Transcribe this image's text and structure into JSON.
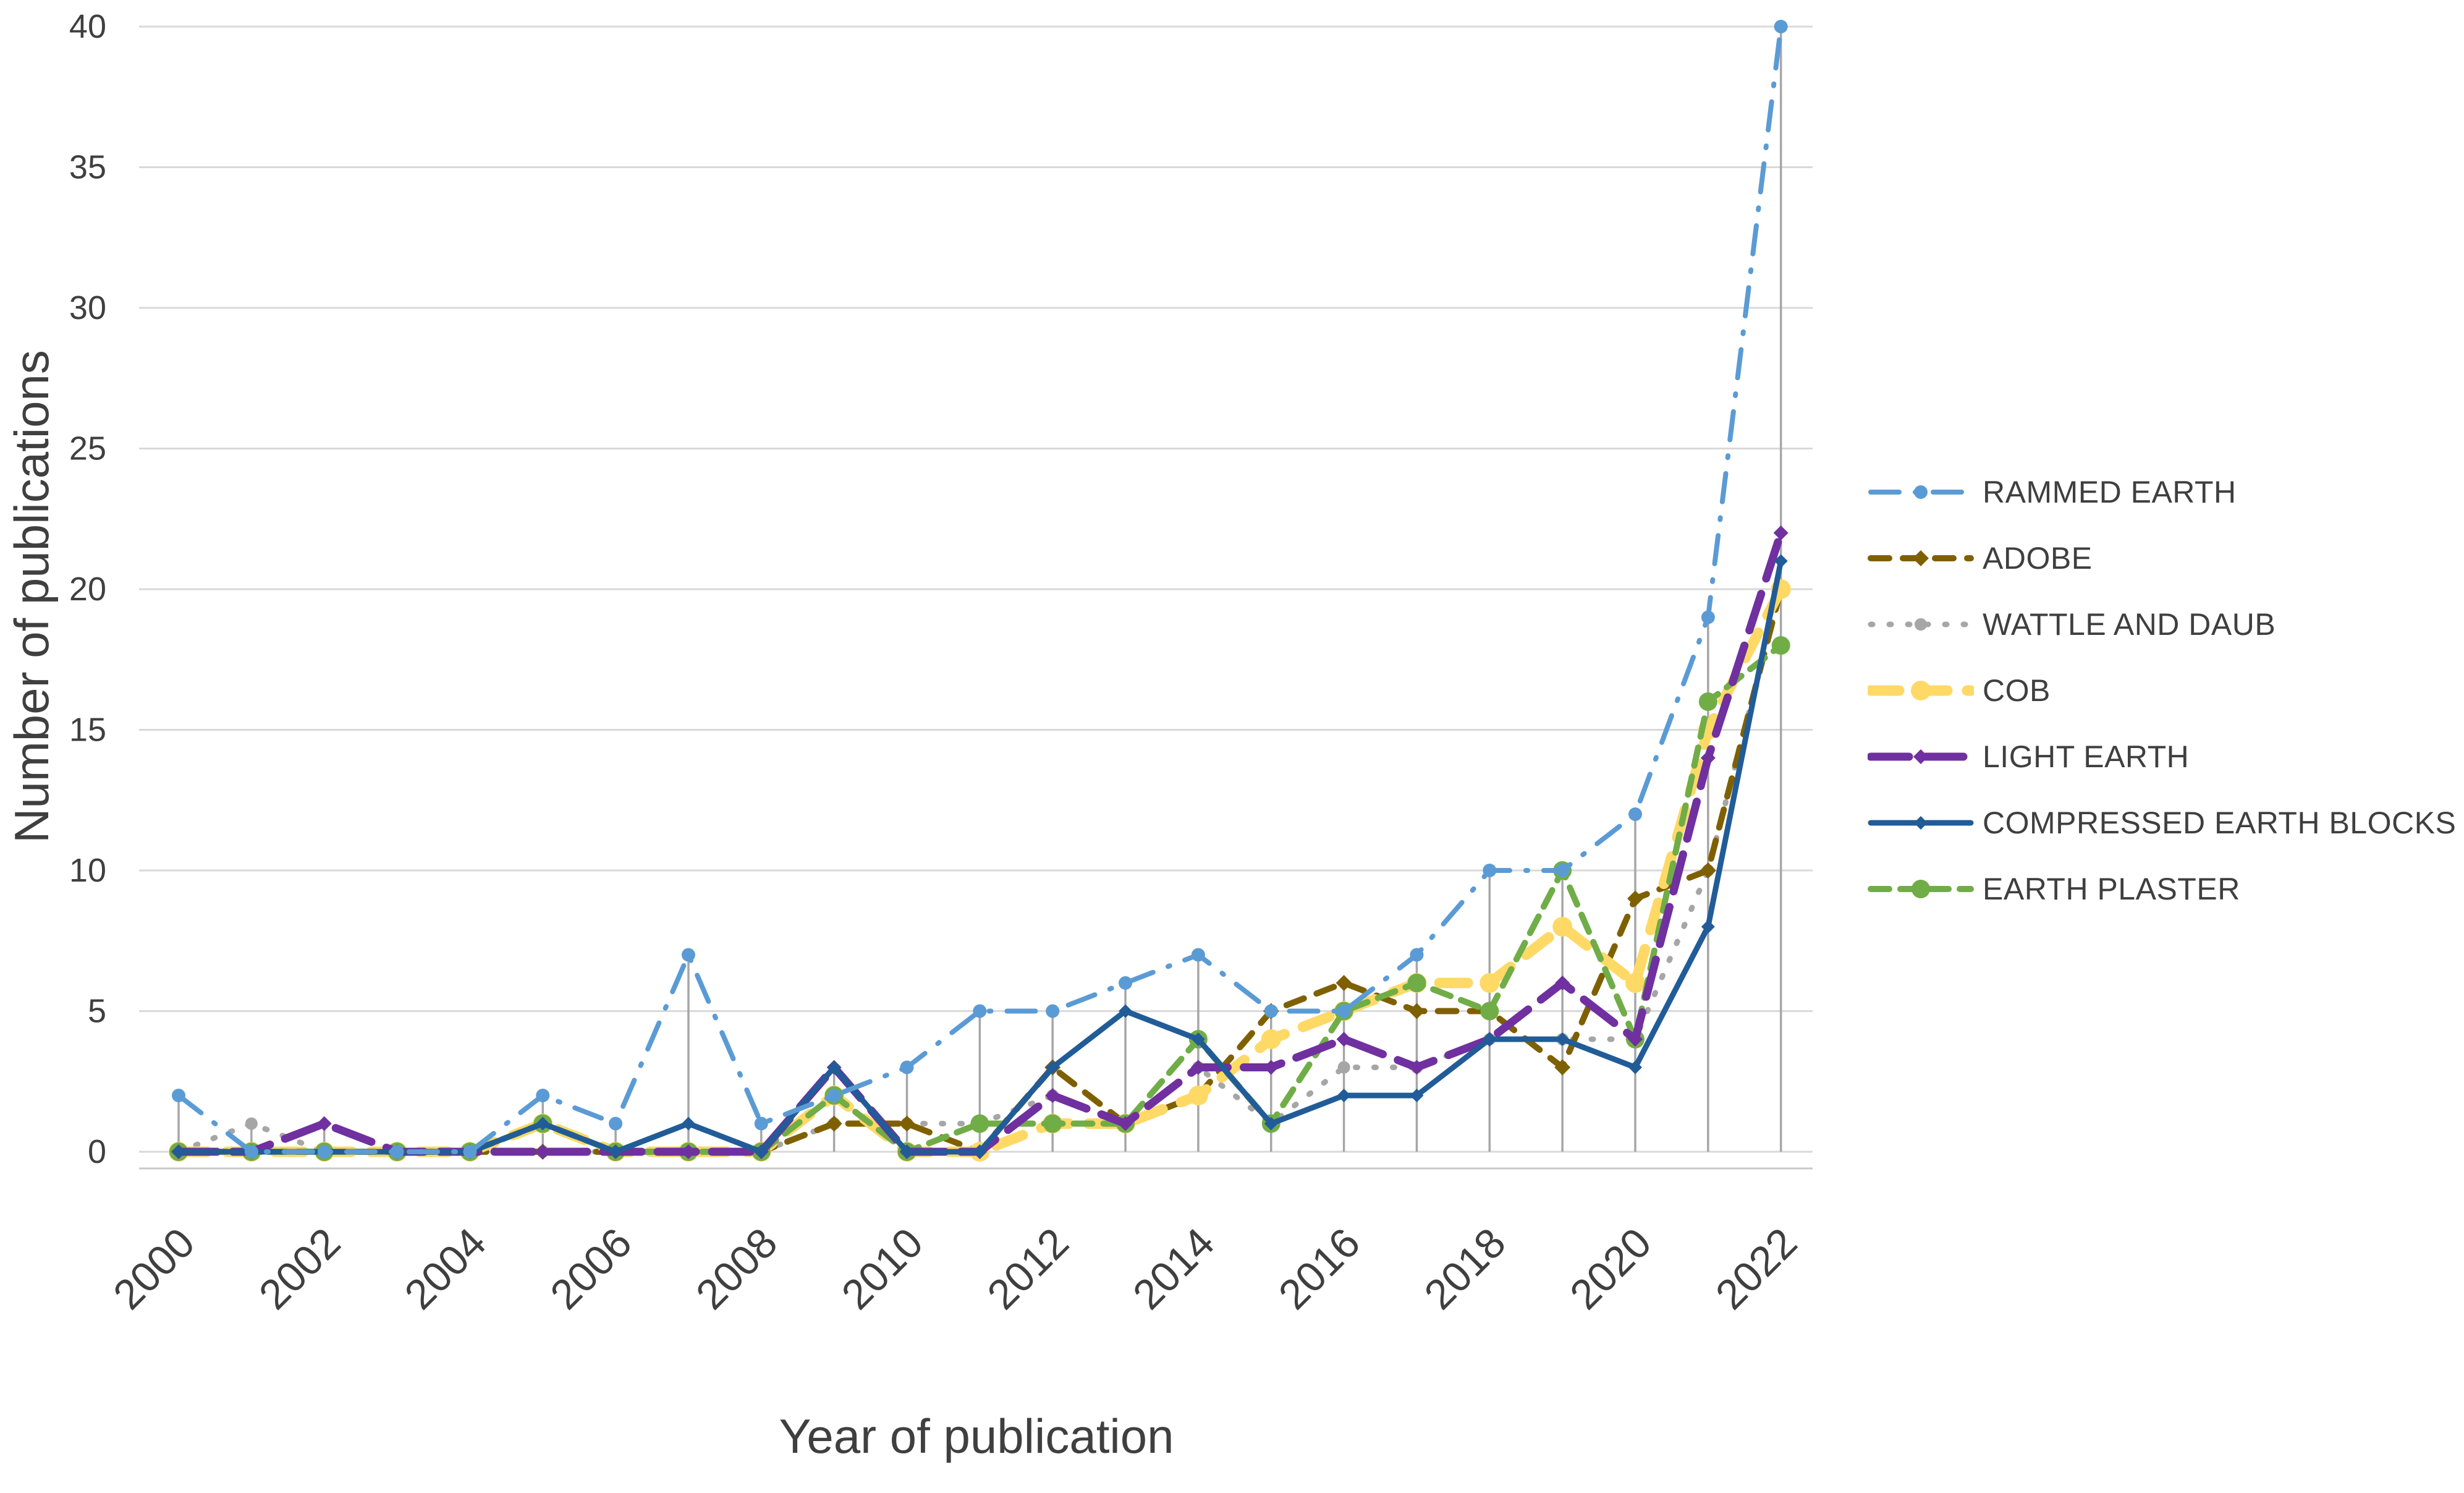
{
  "figure": {
    "background_color": "#FFFFFF",
    "text_color": "#3F3F3F",
    "gridline_color": "#D9D9D9",
    "dropline_color": "#A6A6A6",
    "axisline_color": "#C9C9C9"
  },
  "chart_data": {
    "type": "line",
    "title": "",
    "xlabel": "Year of publication",
    "ylabel": "Number of publications",
    "x": [
      2000,
      2001,
      2002,
      2003,
      2004,
      2005,
      2006,
      2007,
      2008,
      2009,
      2010,
      2011,
      2012,
      2013,
      2014,
      2015,
      2016,
      2017,
      2018,
      2019,
      2020,
      2021,
      2022
    ],
    "x_tick_labels": [
      "2000",
      "2002",
      "2004",
      "2006",
      "2008",
      "2010",
      "2012",
      "2014",
      "2016",
      "2018",
      "2020",
      "2022"
    ],
    "ylim": [
      0,
      40
    ],
    "ytick_step": 5,
    "y_ticks": [
      0,
      5,
      10,
      15,
      20,
      25,
      30,
      35,
      40
    ],
    "grid": {
      "horizontal": true,
      "vertical_droplines_to_series_max": true
    },
    "legend_position": "right",
    "series": [
      {
        "name": "RAMMED EARTH",
        "color": "#5B9BD5",
        "line_style": "dash-dot",
        "marker": "circle",
        "stroke_width": 8,
        "marker_size": 11,
        "dash": "46 26 3 26",
        "z": 7,
        "values": [
          2,
          0,
          0,
          0,
          0,
          2,
          1,
          7,
          1,
          2,
          3,
          5,
          5,
          6,
          7,
          5,
          5,
          7,
          10,
          10,
          12,
          19,
          40
        ]
      },
      {
        "name": "ADOBE",
        "color": "#7F6000",
        "line_style": "dashed",
        "marker": "diamond",
        "stroke_width": 10,
        "marker_size": 13,
        "dash": "30 22",
        "z": 2,
        "values": [
          0,
          0,
          0,
          0,
          0,
          0,
          0,
          0,
          0,
          1,
          1,
          0,
          3,
          1,
          2,
          5,
          6,
          5,
          5,
          3,
          9,
          10,
          20
        ]
      },
      {
        "name": "WATTLE AND DAUB",
        "color": "#A6A6A6",
        "line_style": "dotted",
        "marker": "circle",
        "stroke_width": 9,
        "marker_size": 10,
        "dash": "3 27",
        "z": 1,
        "values": [
          0,
          1,
          0,
          0,
          0,
          0,
          0,
          0,
          0,
          1,
          1,
          1,
          2,
          1,
          3,
          1,
          3,
          3,
          4,
          4,
          4,
          10,
          20
        ]
      },
      {
        "name": "COB",
        "color": "#FFD966",
        "line_style": "thick-dashed",
        "marker": "circle",
        "stroke_width": 17,
        "marker_size": 16,
        "dash": "46 32",
        "z": 3,
        "values": [
          0,
          0,
          0,
          0,
          0,
          1,
          0,
          0,
          0,
          2,
          0,
          0,
          1,
          1,
          2,
          4,
          5,
          6,
          6,
          8,
          6,
          15,
          20
        ]
      },
      {
        "name": "LIGHT EARTH",
        "color": "#7030A0",
        "line_style": "long-dash",
        "marker": "diamond",
        "stroke_width": 13,
        "marker_size": 12,
        "dash": "62 26",
        "z": 5,
        "values": [
          0,
          0,
          1,
          0,
          0,
          0,
          0,
          0,
          0,
          3,
          0,
          0,
          2,
          1,
          3,
          3,
          4,
          3,
          4,
          6,
          4,
          14,
          22
        ]
      },
      {
        "name": "COMPRESSED EARTH BLOCKS",
        "color": "#215C98",
        "line_style": "solid",
        "marker": "diamond",
        "stroke_width": 9,
        "marker_size": 11,
        "dash": "",
        "z": 6,
        "values": [
          0,
          0,
          0,
          0,
          0,
          1,
          0,
          1,
          0,
          3,
          0,
          0,
          3,
          5,
          4,
          1,
          2,
          2,
          4,
          4,
          3,
          8,
          21
        ]
      },
      {
        "name": "EARTH PLASTER",
        "color": "#70AD47",
        "line_style": "dashed",
        "marker": "circle",
        "stroke_width": 10,
        "marker_size": 15,
        "dash": "30 18",
        "z": 4,
        "values": [
          0,
          0,
          0,
          0,
          0,
          1,
          0,
          0,
          0,
          2,
          0,
          1,
          1,
          1,
          4,
          1,
          5,
          6,
          5,
          10,
          4,
          16,
          18
        ]
      }
    ]
  }
}
